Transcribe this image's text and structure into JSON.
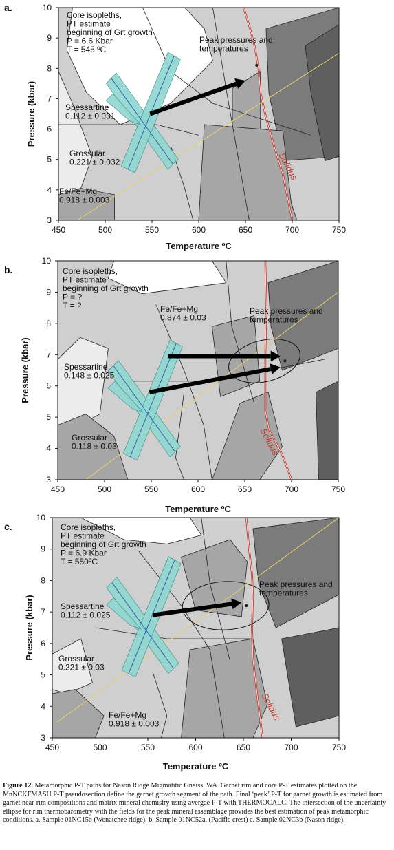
{
  "colors": {
    "field_light": "#ececec",
    "field_mid": "#cfcfcf",
    "field_grey": "#a6a6a6",
    "field_dark": "#7b7b7b",
    "field_darker": "#5f5f5f",
    "solidus": "#c0392b",
    "isopleth_band": "#8fd8d0",
    "isopleth_line": "#2f5fb0",
    "geotherm": "#e8d36a",
    "arrow": "#000000"
  },
  "caption": {
    "title": "Figure 12.",
    "text": "Metamorphic P-T paths for Nason Ridge Migmatitic Gneiss, WA. Garnet rim and core P-T estimates plotted on the MnNCKFMASH P-T pseudosection define the garnet growth segment of the path. Final ‘peak’ P-T for garnet growth is estimated from garnet near-rim compositions and matrix mineral chemistry using avergae P-T with THERMOCALC. The intersection of the uncertainty ellipse for rim thermobarometry with the fields for the peak mineral assemblage provides the best estimation of peak metamorphic conditions. a. Sample 01NC15b (Wenatchee ridge). b. Sample 01NC52a. (Pacific crest) c. Sample 02NC3b (Nason ridge)."
  },
  "chart_data": [
    {
      "type": "line",
      "panel_label": "a.",
      "xlabel": "Temperature ºC",
      "ylabel": "Pressure (kbar)",
      "xlim": [
        450,
        750
      ],
      "ylim": [
        3,
        10
      ],
      "x_ticks": [
        "450",
        "500",
        "550",
        "600",
        "650",
        "700",
        "750"
      ],
      "y_ticks": [
        "3",
        "4",
        "5",
        "6",
        "7",
        "8",
        "9",
        "10"
      ],
      "annotations": {
        "core": [
          "Core isopleths,",
          "PT estimate",
          "beginning of Grt growth",
          "P =  6.6 Kbar",
          "T = 545 ºC"
        ],
        "peak": [
          "Peak pressures and",
          "temperatures"
        ],
        "spessartine": [
          "Spessartine",
          "0.112 ± 0.031"
        ],
        "grossular": [
          "Grossular",
          "0.221 ± 0.032"
        ],
        "femg": [
          "Fe/Fe+Mg",
          "0.918 ± 0.003"
        ],
        "solidus": "Solidus"
      },
      "core_estimate": {
        "T": 545,
        "P": 6.6
      },
      "arrows": [
        {
          "from": [
            548,
            6.5
          ],
          "to": [
            650,
            7.6
          ]
        }
      ],
      "peak_point": [
        662,
        8.1
      ],
      "solidus_curve": {
        "x": [
          648,
          655,
          660,
          664,
          666,
          671,
          680,
          690,
          700
        ],
        "y": [
          10,
          9.3,
          8.7,
          8.0,
          7.2,
          6.5,
          5.5,
          4.5,
          3.0
        ]
      },
      "geotherm": {
        "x": [
          470,
          750
        ],
        "y": [
          3.0,
          8.5
        ]
      }
    },
    {
      "type": "line",
      "panel_label": "b.",
      "xlabel": "Temperature ºC",
      "ylabel": "Pressure (kbar)",
      "xlim": [
        450,
        750
      ],
      "ylim": [
        3,
        10
      ],
      "x_ticks": [
        "450",
        "500",
        "550",
        "600",
        "650",
        "700",
        "750"
      ],
      "y_ticks": [
        "3",
        "4",
        "5",
        "6",
        "7",
        "8",
        "9",
        "10"
      ],
      "annotations": {
        "core": [
          "Core isopleths,",
          "PT estimate",
          "beginning of Grt growth",
          "P = ?",
          "T = ?"
        ],
        "peak": [
          "Peak pressures and",
          "temperatures"
        ],
        "spessartine": [
          "Spessartine",
          "0.148 ± 0.025"
        ],
        "grossular": [
          "Grossular",
          "0.118 ± 0.03"
        ],
        "femg": [
          "Fe/Fe+Mg",
          "0.874 ± 0.03"
        ],
        "solidus": "Solidus"
      },
      "arrows": [
        {
          "from": [
            568,
            6.95
          ],
          "to": [
            688,
            6.95
          ]
        },
        {
          "from": [
            548,
            5.8
          ],
          "to": [
            688,
            6.6
          ]
        }
      ],
      "peak_point": [
        693,
        6.8
      ],
      "solidus_curve": {
        "x": [
          672,
          673,
          672,
          672,
          676,
          690,
          700
        ],
        "y": [
          10,
          8.5,
          7.0,
          5.2,
          4.6,
          3.8,
          3.0
        ]
      },
      "geotherm": {
        "x": [
          480,
          750
        ],
        "y": [
          3.0,
          9.0
        ]
      }
    },
    {
      "type": "line",
      "panel_label": "c.",
      "xlabel": "Temperature ºC",
      "ylabel": "Pressure (kbar)",
      "xlim": [
        450,
        750
      ],
      "ylim": [
        3,
        10
      ],
      "x_ticks": [
        "450",
        "500",
        "550",
        "600",
        "650",
        "700",
        "750"
      ],
      "y_ticks": [
        "3",
        "4",
        "5",
        "6",
        "7",
        "8",
        "9",
        "10"
      ],
      "annotations": {
        "core": [
          "Core isopleths,",
          "PT estimate",
          "beginning of Grt growth",
          "P =  6.9 Kbar",
          "T = 550ºC"
        ],
        "peak": [
          "Peak pressures and",
          "temperatures"
        ],
        "spessartine": [
          "Spessartine",
          "0.112 ± 0.025"
        ],
        "grossular": [
          "Grossular",
          "0.221 ± 0.03"
        ],
        "femg": [
          "Fe/Fe+Mg",
          "0.918 ± 0.003"
        ],
        "solidus": "Solidus"
      },
      "core_estimate": {
        "T": 550,
        "P": 6.9
      },
      "arrows": [
        {
          "from": [
            555,
            6.9
          ],
          "to": [
            648,
            7.3
          ]
        }
      ],
      "peak_point": [
        653,
        7.2
      ],
      "solidus_curve": {
        "x": [
          653,
          656,
          659,
          660,
          659,
          660,
          665,
          670
        ],
        "y": [
          10,
          9.0,
          8.2,
          7.5,
          6.5,
          5.5,
          4.2,
          3.0
        ]
      },
      "geotherm": {
        "x": [
          455,
          750
        ],
        "y": [
          3.5,
          10.0
        ]
      }
    }
  ]
}
